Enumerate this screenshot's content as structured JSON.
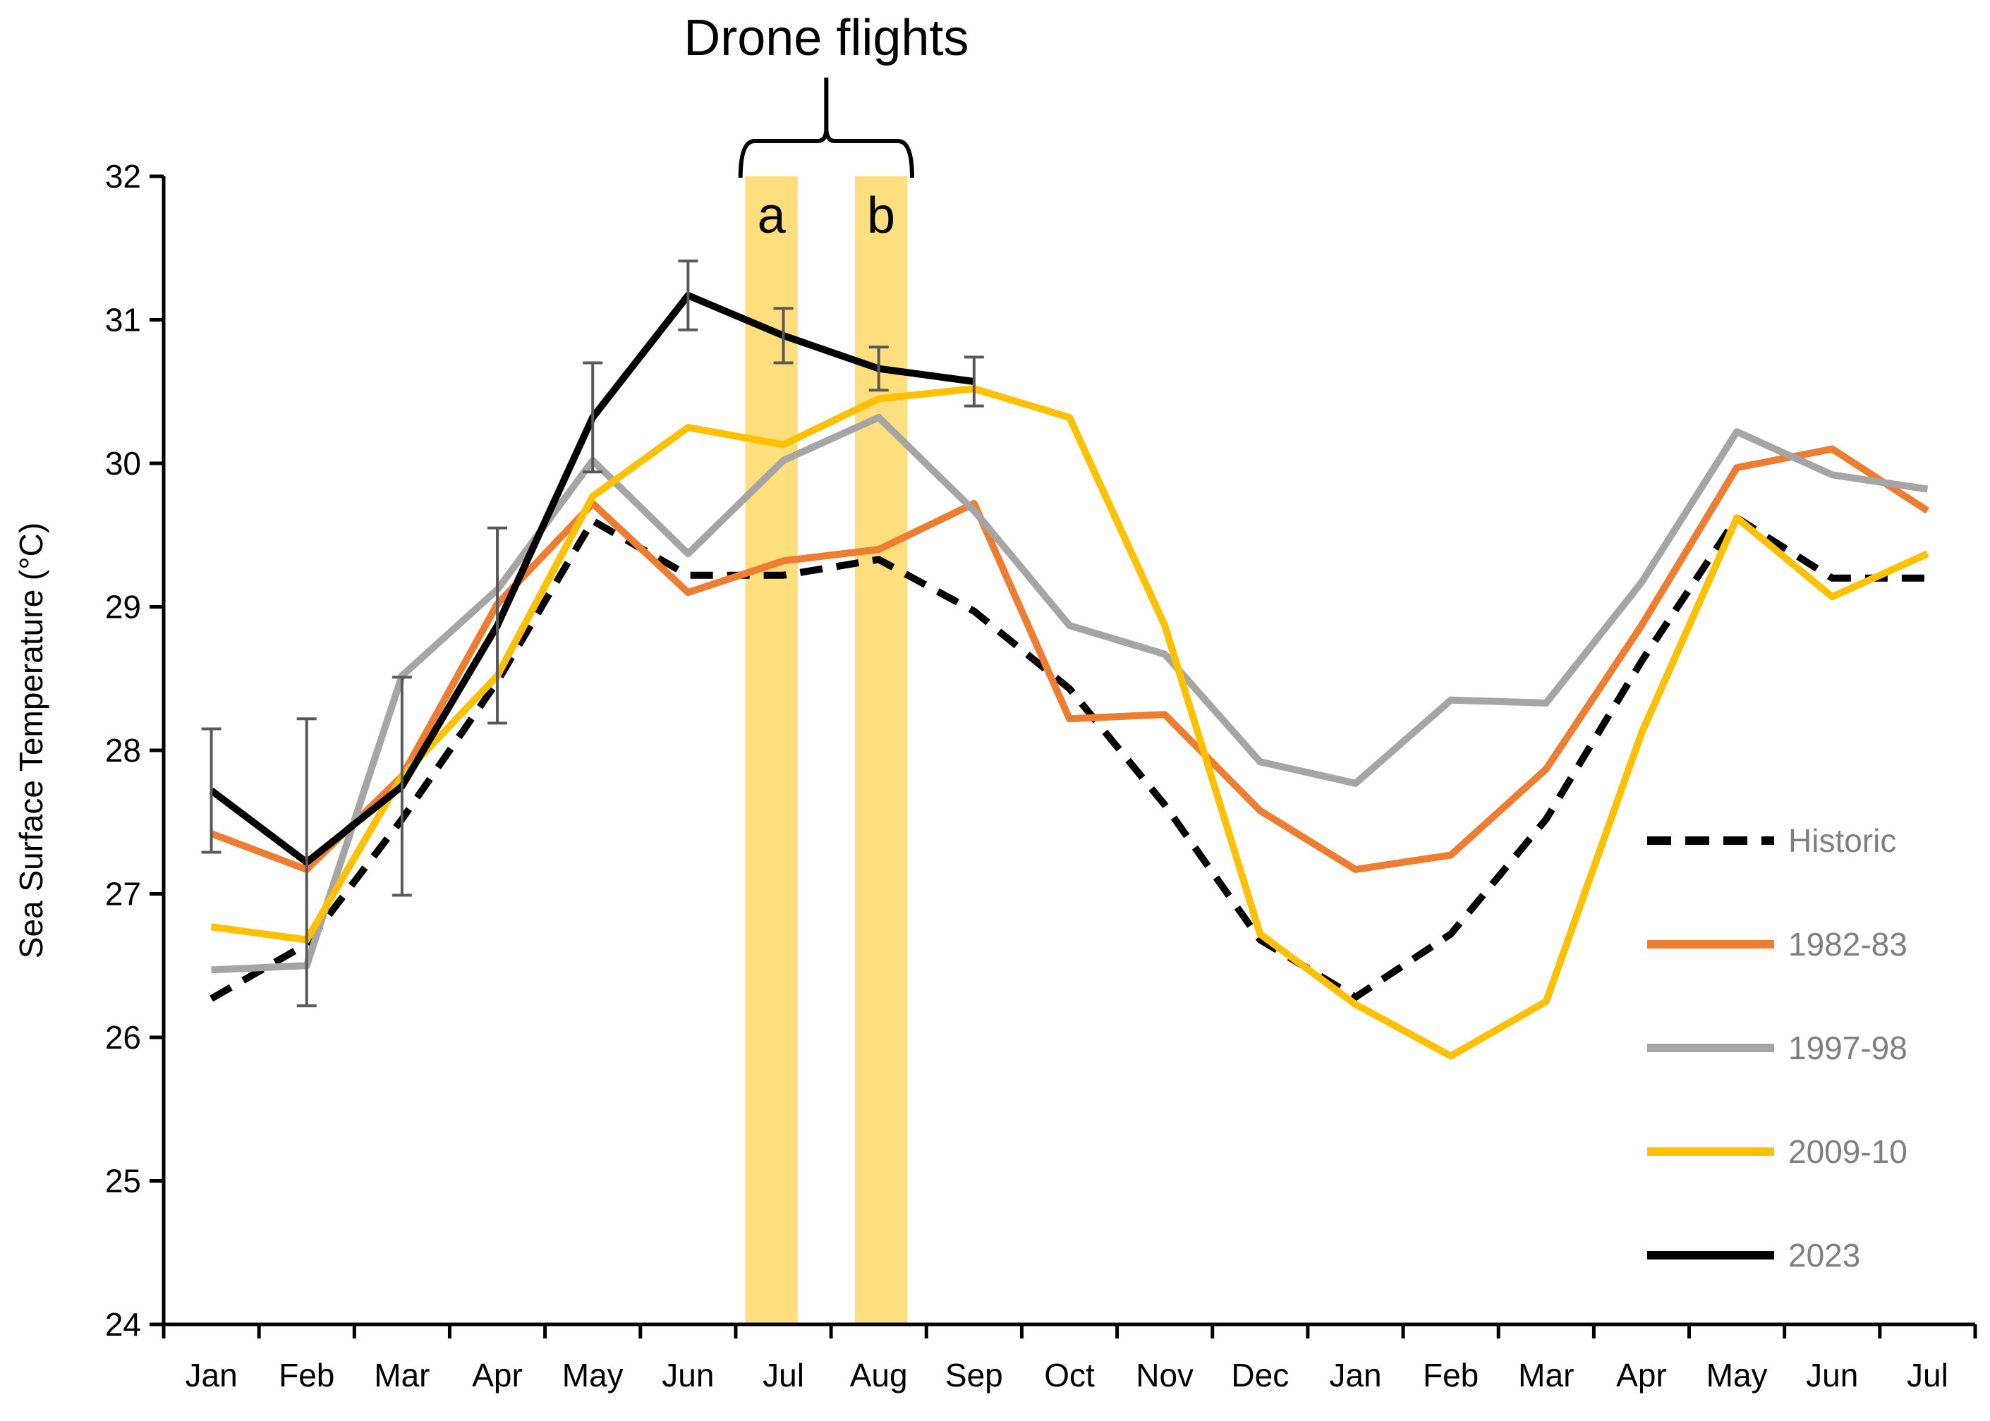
{
  "chart_data": {
    "type": "line",
    "title": "",
    "xlabel": "",
    "ylabel": "Sea Surface Temperature (°C)",
    "ylim": [
      24,
      32
    ],
    "yticks": [
      24,
      25,
      26,
      27,
      28,
      29,
      30,
      31,
      32
    ],
    "categories": [
      "Jan",
      "Feb",
      "Mar",
      "Apr",
      "May",
      "Jun",
      "Jul",
      "Aug",
      "Sep",
      "Oct",
      "Nov",
      "Dec",
      "Jan",
      "Feb",
      "Mar",
      "Apr",
      "May",
      "Jun",
      "Jul"
    ],
    "grid": false,
    "legend_position": "right",
    "series": [
      {
        "name": "Historic",
        "color": "#000000",
        "dashed": true,
        "values": [
          26.27,
          26.65,
          27.52,
          28.48,
          29.6,
          29.22,
          29.22,
          29.33,
          28.97,
          28.43,
          27.62,
          26.68,
          26.28,
          26.72,
          27.52,
          28.62,
          29.62,
          29.2,
          29.2
        ]
      },
      {
        "name": "1982-83",
        "color": "#ED7D31",
        "dashed": false,
        "values": [
          27.42,
          27.17,
          27.82,
          29.02,
          29.72,
          29.1,
          29.32,
          29.4,
          29.72,
          28.22,
          28.25,
          27.58,
          27.17,
          27.27,
          27.87,
          28.87,
          29.97,
          30.1,
          29.67
        ]
      },
      {
        "name": "1997-98",
        "color": "#A5A5A5",
        "dashed": false,
        "values": [
          26.47,
          26.5,
          28.52,
          29.12,
          30.02,
          29.37,
          30.02,
          30.32,
          29.67,
          28.87,
          28.67,
          27.92,
          27.77,
          28.35,
          28.33,
          29.17,
          30.22,
          29.92,
          29.82
        ]
      },
      {
        "name": "2009-10",
        "color": "#FFC000",
        "dashed": false,
        "values": [
          26.77,
          26.68,
          27.82,
          28.52,
          29.77,
          30.25,
          30.13,
          30.45,
          30.52,
          30.32,
          28.87,
          26.72,
          26.23,
          25.87,
          26.25,
          28.12,
          29.62,
          29.07,
          29.37
        ]
      },
      {
        "name": "2023",
        "color": "#000000",
        "dashed": false,
        "values": [
          27.72,
          27.22,
          27.75,
          28.87,
          30.32,
          31.17,
          30.89,
          30.66,
          30.57,
          null,
          null,
          null,
          null,
          null,
          null,
          null,
          null,
          null,
          null
        ],
        "error": [
          0.43,
          1.0,
          0.76,
          0.68,
          0.38,
          0.24,
          0.19,
          0.15,
          0.17,
          null,
          null,
          null,
          null,
          null,
          null,
          null,
          null,
          null,
          null
        ]
      }
    ],
    "highlight_bands": [
      {
        "label": "a",
        "from_month": 5.6,
        "to_month": 6.15,
        "color": "#FFD966"
      },
      {
        "label": "b",
        "from_month": 6.75,
        "to_month": 7.3,
        "color": "#FFD966"
      }
    ],
    "annotation": "Drone flights"
  }
}
